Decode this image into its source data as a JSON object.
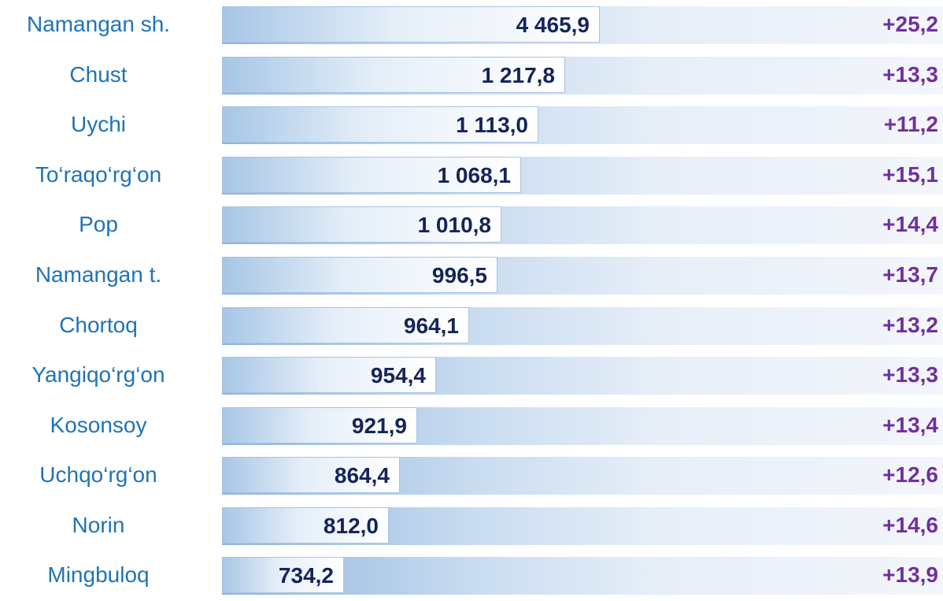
{
  "rows": [
    {
      "name": "Namangan sh.",
      "value": "4 465,9",
      "change": "+25,2"
    },
    {
      "name": "Chust",
      "value": "1 217,8",
      "change": "+13,3"
    },
    {
      "name": "Uychi",
      "value": "1 113,0",
      "change": "+11,2"
    },
    {
      "name": "To‘raqo‘rg‘on",
      "value": "1 068,1",
      "change": "+15,1"
    },
    {
      "name": "Pop",
      "value": "1 010,8",
      "change": "+14,4"
    },
    {
      "name": "Namangan t.",
      "value": "996,5",
      "change": "+13,7"
    },
    {
      "name": "Chortoq",
      "value": "964,1",
      "change": "+13,2"
    },
    {
      "name": "Yangiqo‘rg‘on",
      "value": "954,4",
      "change": "+13,3"
    },
    {
      "name": "Kosonsoy",
      "value": "921,9",
      "change": "+13,4"
    },
    {
      "name": "Uchqo‘rg‘on",
      "value": "864,4",
      "change": "+12,6"
    },
    {
      "name": "Norin",
      "value": "812,0",
      "change": "+14,6"
    },
    {
      "name": "Mingbuloq",
      "value": "734,2",
      "change": "+13,9"
    }
  ]
}
